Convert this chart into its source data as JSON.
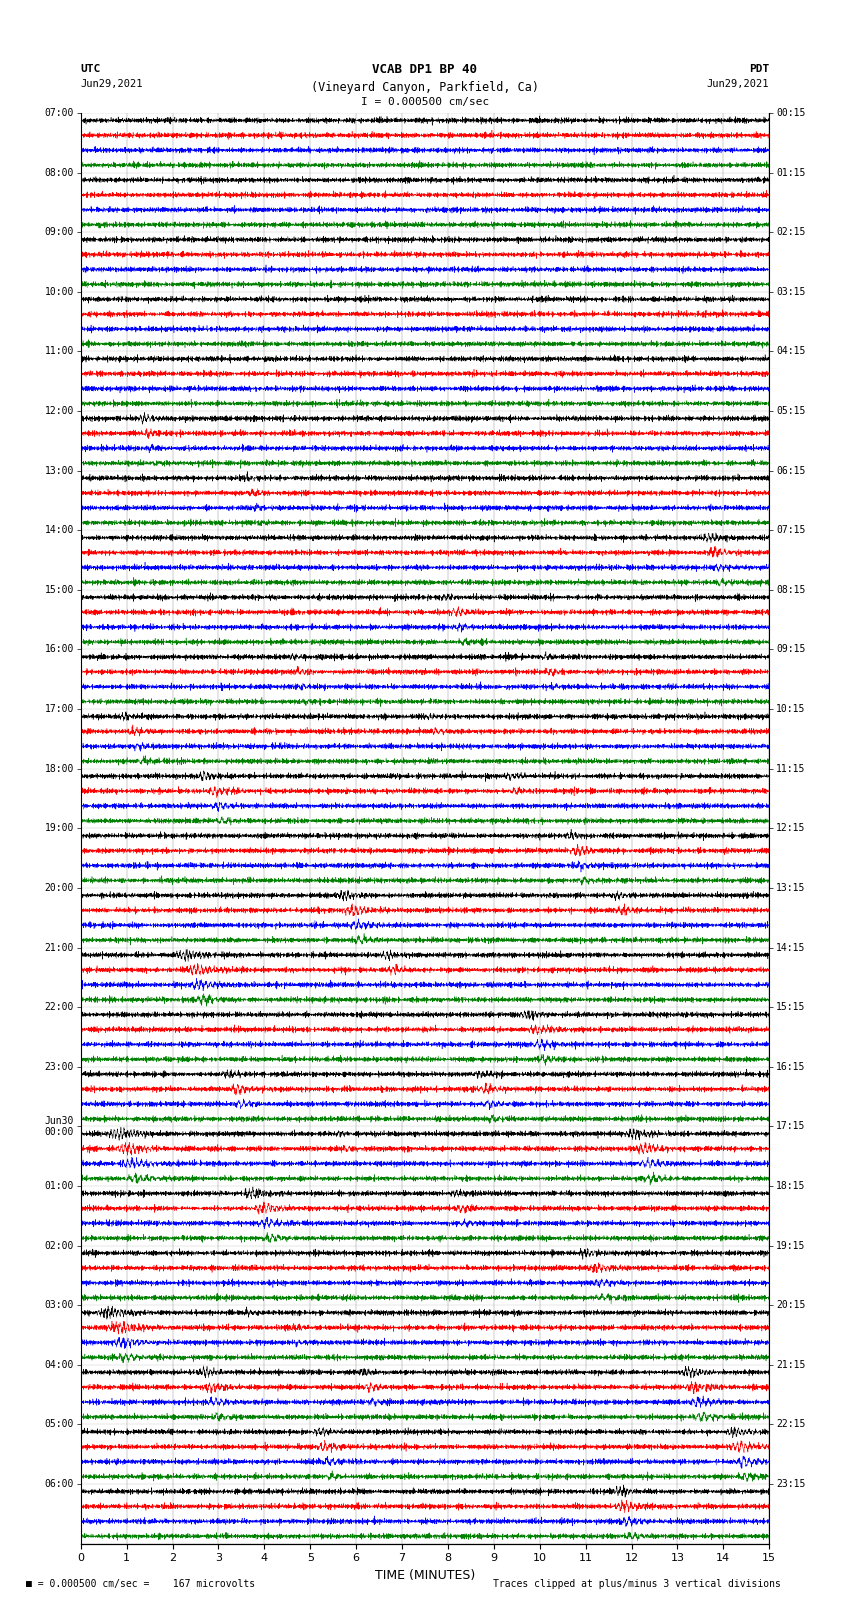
{
  "title_line1": "VCAB DP1 BP 40",
  "title_line2": "(Vineyard Canyon, Parkfield, Ca)",
  "scale_text": "I = 0.000500 cm/sec",
  "utc_label": "UTC",
  "pdt_label": "PDT",
  "date_left": "Jun29,2021",
  "date_right": "Jun29,2021",
  "footer_left": "= 0.000500 cm/sec =    167 microvolts",
  "footer_right": "Traces clipped at plus/minus 3 vertical divisions",
  "xlabel": "TIME (MINUTES)",
  "xmin": 0,
  "xmax": 15,
  "xticks": [
    0,
    1,
    2,
    3,
    4,
    5,
    6,
    7,
    8,
    9,
    10,
    11,
    12,
    13,
    14,
    15
  ],
  "colors": [
    "black",
    "red",
    "blue",
    "green"
  ],
  "left_times_utc": [
    "07:00",
    "08:00",
    "09:00",
    "10:00",
    "11:00",
    "12:00",
    "13:00",
    "14:00",
    "15:00",
    "16:00",
    "17:00",
    "18:00",
    "19:00",
    "20:00",
    "21:00",
    "22:00",
    "23:00",
    "Jun30\n00:00",
    "01:00",
    "02:00",
    "03:00",
    "04:00",
    "05:00",
    "06:00"
  ],
  "right_times_pdt": [
    "00:15",
    "01:15",
    "02:15",
    "03:15",
    "04:15",
    "05:15",
    "06:15",
    "07:15",
    "08:15",
    "09:15",
    "10:15",
    "11:15",
    "12:15",
    "13:15",
    "14:15",
    "15:15",
    "16:15",
    "17:15",
    "18:15",
    "19:15",
    "20:15",
    "21:15",
    "22:15",
    "23:15"
  ],
  "seed": 12345,
  "noise_std": 0.006,
  "trace_halfheight": 0.11,
  "events": [
    {
      "row": 5,
      "col": 0,
      "t": 1.2,
      "amp": 0.9,
      "dur": 0.5,
      "freq": 12
    },
    {
      "row": 5,
      "col": 1,
      "t": 1.3,
      "amp": 0.7,
      "dur": 0.5,
      "freq": 10
    },
    {
      "row": 5,
      "col": 2,
      "t": 1.4,
      "amp": 0.5,
      "dur": 0.4,
      "freq": 8
    },
    {
      "row": 5,
      "col": 3,
      "t": 1.5,
      "amp": 0.4,
      "dur": 0.4,
      "freq": 6
    },
    {
      "row": 6,
      "col": 0,
      "t": 3.5,
      "amp": 0.5,
      "dur": 0.4,
      "freq": 10
    },
    {
      "row": 6,
      "col": 1,
      "t": 3.6,
      "amp": 0.6,
      "dur": 0.5,
      "freq": 9
    },
    {
      "row": 6,
      "col": 2,
      "t": 3.7,
      "amp": 0.5,
      "dur": 0.4,
      "freq": 8
    },
    {
      "row": 6,
      "col": 3,
      "t": 3.8,
      "amp": 0.4,
      "dur": 0.4,
      "freq": 7
    },
    {
      "row": 7,
      "col": 0,
      "t": 13.5,
      "amp": 0.8,
      "dur": 0.6,
      "freq": 12
    },
    {
      "row": 7,
      "col": 1,
      "t": 13.6,
      "amp": 0.9,
      "dur": 0.7,
      "freq": 10
    },
    {
      "row": 7,
      "col": 2,
      "t": 13.7,
      "amp": 0.7,
      "dur": 0.6,
      "freq": 9
    },
    {
      "row": 7,
      "col": 3,
      "t": 13.8,
      "amp": 0.6,
      "dur": 0.5,
      "freq": 7
    },
    {
      "row": 8,
      "col": 0,
      "t": 7.8,
      "amp": 0.6,
      "dur": 0.5,
      "freq": 11
    },
    {
      "row": 8,
      "col": 1,
      "t": 8.0,
      "amp": 0.8,
      "dur": 0.6,
      "freq": 10
    },
    {
      "row": 8,
      "col": 2,
      "t": 8.1,
      "amp": 0.6,
      "dur": 0.5,
      "freq": 8
    },
    {
      "row": 8,
      "col": 3,
      "t": 8.2,
      "amp": 0.5,
      "dur": 0.5,
      "freq": 7
    },
    {
      "row": 9,
      "col": 0,
      "t": 4.5,
      "amp": 0.5,
      "dur": 0.4,
      "freq": 11
    },
    {
      "row": 9,
      "col": 1,
      "t": 4.6,
      "amp": 0.6,
      "dur": 0.5,
      "freq": 10
    },
    {
      "row": 9,
      "col": 2,
      "t": 4.7,
      "amp": 0.5,
      "dur": 0.4,
      "freq": 8
    },
    {
      "row": 9,
      "col": 3,
      "t": 4.8,
      "amp": 0.4,
      "dur": 0.4,
      "freq": 7
    },
    {
      "row": 9,
      "col": 0,
      "t": 10.0,
      "amp": 0.5,
      "dur": 0.4,
      "freq": 10
    },
    {
      "row": 9,
      "col": 1,
      "t": 10.1,
      "amp": 0.6,
      "dur": 0.4,
      "freq": 9
    },
    {
      "row": 9,
      "col": 2,
      "t": 10.2,
      "amp": 0.4,
      "dur": 0.3,
      "freq": 8
    },
    {
      "row": 10,
      "col": 0,
      "t": 0.8,
      "amp": 0.6,
      "dur": 0.5,
      "freq": 12
    },
    {
      "row": 10,
      "col": 1,
      "t": 1.0,
      "amp": 0.7,
      "dur": 0.6,
      "freq": 10
    },
    {
      "row": 10,
      "col": 2,
      "t": 1.1,
      "amp": 0.6,
      "dur": 0.5,
      "freq": 9
    },
    {
      "row": 10,
      "col": 3,
      "t": 1.2,
      "amp": 0.5,
      "dur": 0.5,
      "freq": 7
    },
    {
      "row": 10,
      "col": 0,
      "t": 7.5,
      "amp": 0.5,
      "dur": 0.4,
      "freq": 11
    },
    {
      "row": 10,
      "col": 1,
      "t": 7.6,
      "amp": 0.6,
      "dur": 0.5,
      "freq": 9
    },
    {
      "row": 11,
      "col": 0,
      "t": 2.5,
      "amp": 0.8,
      "dur": 0.6,
      "freq": 12
    },
    {
      "row": 11,
      "col": 1,
      "t": 2.7,
      "amp": 0.9,
      "dur": 0.7,
      "freq": 10
    },
    {
      "row": 11,
      "col": 2,
      "t": 2.8,
      "amp": 0.8,
      "dur": 0.6,
      "freq": 9
    },
    {
      "row": 11,
      "col": 3,
      "t": 2.9,
      "amp": 0.7,
      "dur": 0.5,
      "freq": 7
    },
    {
      "row": 11,
      "col": 0,
      "t": 9.2,
      "amp": 0.6,
      "dur": 0.5,
      "freq": 11
    },
    {
      "row": 11,
      "col": 1,
      "t": 9.3,
      "amp": 0.6,
      "dur": 0.5,
      "freq": 9
    },
    {
      "row": 12,
      "col": 0,
      "t": 10.5,
      "amp": 0.7,
      "dur": 0.6,
      "freq": 12
    },
    {
      "row": 12,
      "col": 1,
      "t": 10.6,
      "amp": 0.8,
      "dur": 0.7,
      "freq": 10
    },
    {
      "row": 12,
      "col": 2,
      "t": 10.7,
      "amp": 0.7,
      "dur": 0.6,
      "freq": 8
    },
    {
      "row": 12,
      "col": 3,
      "t": 10.8,
      "amp": 0.6,
      "dur": 0.5,
      "freq": 7
    },
    {
      "row": 13,
      "col": 0,
      "t": 5.5,
      "amp": 0.9,
      "dur": 0.7,
      "freq": 13
    },
    {
      "row": 13,
      "col": 1,
      "t": 5.7,
      "amp": 1.0,
      "dur": 0.8,
      "freq": 11
    },
    {
      "row": 13,
      "col": 2,
      "t": 5.8,
      "amp": 0.9,
      "dur": 0.7,
      "freq": 9
    },
    {
      "row": 13,
      "col": 3,
      "t": 5.9,
      "amp": 0.8,
      "dur": 0.6,
      "freq": 8
    },
    {
      "row": 13,
      "col": 0,
      "t": 11.5,
      "amp": 0.7,
      "dur": 0.6,
      "freq": 12
    },
    {
      "row": 13,
      "col": 1,
      "t": 11.6,
      "amp": 0.7,
      "dur": 0.6,
      "freq": 10
    },
    {
      "row": 14,
      "col": 0,
      "t": 2.0,
      "amp": 1.0,
      "dur": 0.9,
      "freq": 14
    },
    {
      "row": 14,
      "col": 1,
      "t": 2.2,
      "amp": 1.0,
      "dur": 1.0,
      "freq": 12
    },
    {
      "row": 14,
      "col": 2,
      "t": 2.3,
      "amp": 0.9,
      "dur": 0.9,
      "freq": 10
    },
    {
      "row": 14,
      "col": 3,
      "t": 2.4,
      "amp": 0.8,
      "dur": 0.8,
      "freq": 8
    },
    {
      "row": 14,
      "col": 0,
      "t": 6.5,
      "amp": 0.7,
      "dur": 0.6,
      "freq": 13
    },
    {
      "row": 14,
      "col": 1,
      "t": 6.6,
      "amp": 0.8,
      "dur": 0.6,
      "freq": 11
    },
    {
      "row": 15,
      "col": 0,
      "t": 9.5,
      "amp": 0.8,
      "dur": 0.7,
      "freq": 13
    },
    {
      "row": 15,
      "col": 1,
      "t": 9.7,
      "amp": 0.9,
      "dur": 0.8,
      "freq": 11
    },
    {
      "row": 15,
      "col": 2,
      "t": 9.8,
      "amp": 0.8,
      "dur": 0.7,
      "freq": 9
    },
    {
      "row": 15,
      "col": 3,
      "t": 9.9,
      "amp": 0.7,
      "dur": 0.6,
      "freq": 8
    },
    {
      "row": 16,
      "col": 0,
      "t": 3.0,
      "amp": 0.7,
      "dur": 0.6,
      "freq": 12
    },
    {
      "row": 16,
      "col": 1,
      "t": 3.2,
      "amp": 0.8,
      "dur": 0.7,
      "freq": 10
    },
    {
      "row": 16,
      "col": 2,
      "t": 3.3,
      "amp": 0.7,
      "dur": 0.6,
      "freq": 9
    },
    {
      "row": 16,
      "col": 0,
      "t": 8.5,
      "amp": 0.7,
      "dur": 0.6,
      "freq": 12
    },
    {
      "row": 16,
      "col": 1,
      "t": 8.6,
      "amp": 0.8,
      "dur": 0.7,
      "freq": 10
    },
    {
      "row": 16,
      "col": 2,
      "t": 8.7,
      "amp": 0.7,
      "dur": 0.6,
      "freq": 8
    },
    {
      "row": 16,
      "col": 3,
      "t": 8.8,
      "amp": 0.6,
      "dur": 0.5,
      "freq": 7
    },
    {
      "row": 17,
      "col": 0,
      "t": 0.5,
      "amp": 1.0,
      "dur": 1.0,
      "freq": 14
    },
    {
      "row": 17,
      "col": 1,
      "t": 0.7,
      "amp": 1.0,
      "dur": 1.1,
      "freq": 12
    },
    {
      "row": 17,
      "col": 2,
      "t": 0.8,
      "amp": 0.9,
      "dur": 1.0,
      "freq": 10
    },
    {
      "row": 17,
      "col": 3,
      "t": 0.9,
      "amp": 0.8,
      "dur": 0.9,
      "freq": 8
    },
    {
      "row": 17,
      "col": 0,
      "t": 5.5,
      "amp": 0.5,
      "dur": 0.5,
      "freq": 11
    },
    {
      "row": 17,
      "col": 1,
      "t": 5.6,
      "amp": 0.6,
      "dur": 0.5,
      "freq": 9
    },
    {
      "row": 17,
      "col": 0,
      "t": 11.8,
      "amp": 0.9,
      "dur": 0.8,
      "freq": 13
    },
    {
      "row": 17,
      "col": 1,
      "t": 12.0,
      "amp": 1.0,
      "dur": 0.9,
      "freq": 11
    },
    {
      "row": 17,
      "col": 2,
      "t": 12.1,
      "amp": 0.9,
      "dur": 0.8,
      "freq": 9
    },
    {
      "row": 17,
      "col": 3,
      "t": 12.2,
      "amp": 0.8,
      "dur": 0.7,
      "freq": 8
    },
    {
      "row": 18,
      "col": 0,
      "t": 3.5,
      "amp": 0.9,
      "dur": 0.8,
      "freq": 13
    },
    {
      "row": 18,
      "col": 1,
      "t": 3.7,
      "amp": 1.0,
      "dur": 0.9,
      "freq": 11
    },
    {
      "row": 18,
      "col": 2,
      "t": 3.8,
      "amp": 0.9,
      "dur": 0.8,
      "freq": 9
    },
    {
      "row": 18,
      "col": 3,
      "t": 3.9,
      "amp": 0.8,
      "dur": 0.7,
      "freq": 8
    },
    {
      "row": 18,
      "col": 0,
      "t": 8.0,
      "amp": 0.6,
      "dur": 0.5,
      "freq": 12
    },
    {
      "row": 18,
      "col": 1,
      "t": 8.1,
      "amp": 0.7,
      "dur": 0.6,
      "freq": 10
    },
    {
      "row": 18,
      "col": 2,
      "t": 8.2,
      "amp": 0.6,
      "dur": 0.5,
      "freq": 8
    },
    {
      "row": 19,
      "col": 0,
      "t": 10.8,
      "amp": 0.8,
      "dur": 0.7,
      "freq": 13
    },
    {
      "row": 19,
      "col": 1,
      "t": 11.0,
      "amp": 0.9,
      "dur": 0.8,
      "freq": 11
    },
    {
      "row": 19,
      "col": 2,
      "t": 11.1,
      "amp": 0.8,
      "dur": 0.7,
      "freq": 9
    },
    {
      "row": 19,
      "col": 3,
      "t": 11.2,
      "amp": 0.7,
      "dur": 0.6,
      "freq": 8
    },
    {
      "row": 20,
      "col": 0,
      "t": 0.3,
      "amp": 1.0,
      "dur": 1.0,
      "freq": 14
    },
    {
      "row": 20,
      "col": 1,
      "t": 0.5,
      "amp": 1.0,
      "dur": 1.1,
      "freq": 12
    },
    {
      "row": 20,
      "col": 2,
      "t": 0.6,
      "amp": 0.9,
      "dur": 1.0,
      "freq": 10
    },
    {
      "row": 20,
      "col": 3,
      "t": 0.7,
      "amp": 0.8,
      "dur": 0.9,
      "freq": 8
    },
    {
      "row": 20,
      "col": 0,
      "t": 3.5,
      "amp": 0.5,
      "dur": 0.5,
      "freq": 11
    },
    {
      "row": 20,
      "col": 1,
      "t": 4.5,
      "amp": 0.6,
      "dur": 0.5,
      "freq": 9
    },
    {
      "row": 20,
      "col": 2,
      "t": 4.6,
      "amp": 0.5,
      "dur": 0.4,
      "freq": 8
    },
    {
      "row": 21,
      "col": 0,
      "t": 2.5,
      "amp": 0.8,
      "dur": 0.7,
      "freq": 13
    },
    {
      "row": 21,
      "col": 1,
      "t": 2.6,
      "amp": 0.9,
      "dur": 0.8,
      "freq": 11
    },
    {
      "row": 21,
      "col": 2,
      "t": 2.7,
      "amp": 0.8,
      "dur": 0.7,
      "freq": 9
    },
    {
      "row": 21,
      "col": 3,
      "t": 2.8,
      "amp": 0.7,
      "dur": 0.6,
      "freq": 8
    },
    {
      "row": 21,
      "col": 0,
      "t": 6.0,
      "amp": 0.6,
      "dur": 0.5,
      "freq": 12
    },
    {
      "row": 21,
      "col": 1,
      "t": 6.1,
      "amp": 0.7,
      "dur": 0.6,
      "freq": 10
    },
    {
      "row": 21,
      "col": 2,
      "t": 6.2,
      "amp": 0.6,
      "dur": 0.5,
      "freq": 8
    },
    {
      "row": 21,
      "col": 0,
      "t": 13.0,
      "amp": 0.9,
      "dur": 0.8,
      "freq": 13
    },
    {
      "row": 21,
      "col": 1,
      "t": 13.1,
      "amp": 1.0,
      "dur": 0.9,
      "freq": 11
    },
    {
      "row": 21,
      "col": 2,
      "t": 13.2,
      "amp": 0.9,
      "dur": 0.8,
      "freq": 9
    },
    {
      "row": 21,
      "col": 3,
      "t": 13.3,
      "amp": 0.8,
      "dur": 0.7,
      "freq": 8
    },
    {
      "row": 22,
      "col": 0,
      "t": 5.0,
      "amp": 0.7,
      "dur": 0.6,
      "freq": 12
    },
    {
      "row": 22,
      "col": 1,
      "t": 5.1,
      "amp": 0.8,
      "dur": 0.7,
      "freq": 10
    },
    {
      "row": 22,
      "col": 2,
      "t": 5.2,
      "amp": 0.7,
      "dur": 0.6,
      "freq": 8
    },
    {
      "row": 22,
      "col": 3,
      "t": 5.3,
      "amp": 0.6,
      "dur": 0.5,
      "freq": 7
    },
    {
      "row": 22,
      "col": 0,
      "t": 14.0,
      "amp": 0.9,
      "dur": 0.8,
      "freq": 13
    },
    {
      "row": 22,
      "col": 1,
      "t": 14.1,
      "amp": 1.0,
      "dur": 0.9,
      "freq": 11
    },
    {
      "row": 22,
      "col": 2,
      "t": 14.2,
      "amp": 0.9,
      "dur": 0.8,
      "freq": 9
    },
    {
      "row": 22,
      "col": 3,
      "t": 14.3,
      "amp": 0.8,
      "dur": 0.7,
      "freq": 8
    },
    {
      "row": 23,
      "col": 0,
      "t": 11.5,
      "amp": 0.8,
      "dur": 0.7,
      "freq": 13
    },
    {
      "row": 23,
      "col": 1,
      "t": 11.6,
      "amp": 0.9,
      "dur": 0.8,
      "freq": 11
    },
    {
      "row": 23,
      "col": 2,
      "t": 11.7,
      "amp": 0.8,
      "dur": 0.7,
      "freq": 9
    },
    {
      "row": 23,
      "col": 3,
      "t": 11.8,
      "amp": 0.7,
      "dur": 0.6,
      "freq": 8
    }
  ]
}
